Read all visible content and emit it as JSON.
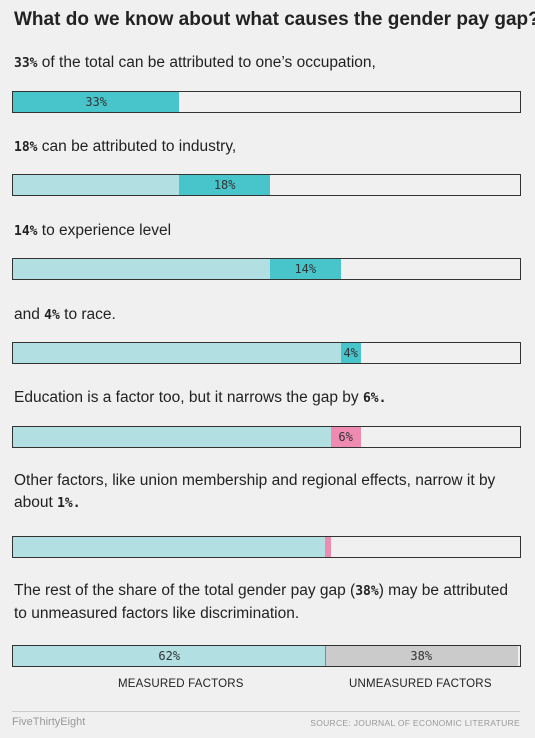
{
  "title": "What do we know about what causes the gender pay gap?",
  "steps": [
    {
      "pre": "",
      "bold": "33%",
      "post": " of the total can be attributed to one’s occupation,"
    },
    {
      "pre": "",
      "bold": "18%",
      "post": " can be attributed to industry,"
    },
    {
      "pre": "",
      "bold": "14%",
      "post": " to experience level"
    },
    {
      "pre": "and ",
      "bold": "4%",
      "post": " to race."
    },
    {
      "pre": "Education is a factor too, but it narrows the gap by ",
      "bold": "6%.",
      "post": ""
    },
    {
      "pre": "Other factors, like union membership and regional effects, narrow it by about ",
      "bold": "1%.",
      "post": ""
    },
    {
      "pre": "The rest of the share of the total gender pay gap (",
      "bold": "38%",
      "post": ") may be attributed to unmeasured factors like discrimination."
    }
  ],
  "axis_labels": {
    "measured": "MEASURED FACTORS",
    "unmeasured": "UNMEASURED FACTORS"
  },
  "footer": {
    "brand": "FiveThirtyEight",
    "source": "SOURCE: JOURNAL OF ECONOMIC LITERATURE"
  },
  "colors": {
    "highlight": "#48c4cb",
    "cumulative": "#b1dfe2",
    "negative": "#ef8bb0",
    "unmeasured": "#cbcbcb",
    "empty": "#f0f0f0"
  },
  "chart_data": {
    "type": "bar",
    "unit": "%",
    "xlim": [
      0,
      100
    ],
    "bars": [
      {
        "base": 0,
        "segment": {
          "start": 0,
          "end": 33,
          "kind": "highlight",
          "label": "33%"
        }
      },
      {
        "base": 33,
        "segment": {
          "start": 33,
          "end": 51,
          "kind": "highlight",
          "label": "18%"
        }
      },
      {
        "base": 51,
        "segment": {
          "start": 51,
          "end": 65,
          "kind": "highlight",
          "label": "14%"
        }
      },
      {
        "base": 65,
        "segment": {
          "start": 65,
          "end": 69,
          "kind": "highlight",
          "label": "4%"
        }
      },
      {
        "base": 63,
        "segment": {
          "start": 63,
          "end": 69,
          "kind": "negative",
          "label": "6%"
        }
      },
      {
        "base": 62,
        "segment": {
          "start": 62,
          "end": 63,
          "kind": "negative",
          "label": ""
        }
      },
      {
        "base": 62,
        "segment": {
          "start": 62,
          "end": 100,
          "kind": "unmeasured",
          "label": "38%"
        },
        "base_label": "62%"
      }
    ]
  }
}
